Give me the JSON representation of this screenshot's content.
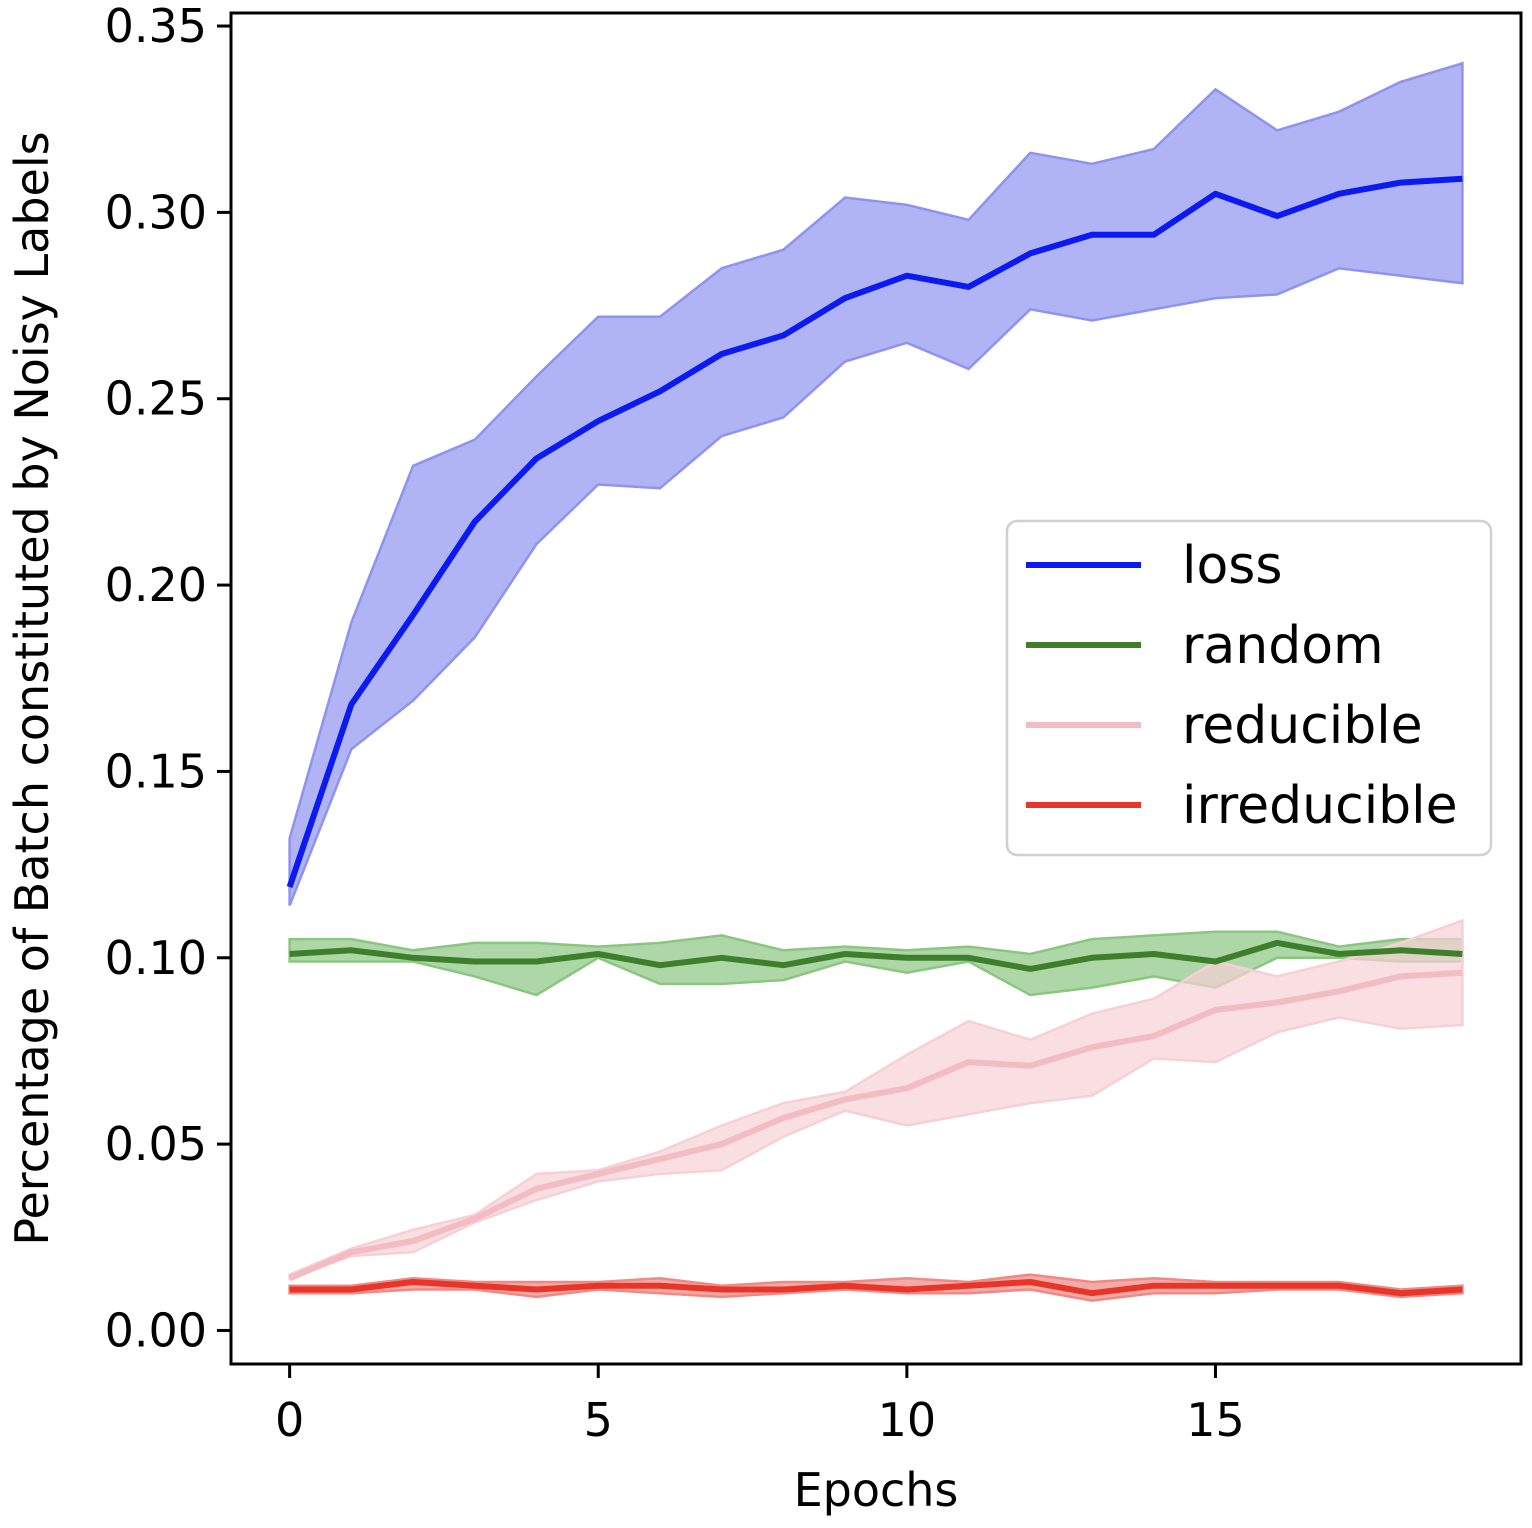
{
  "chart_data": {
    "type": "line",
    "title": "",
    "xlabel": "Epochs",
    "ylabel": "Percentage of Batch constituted by Noisy Labels",
    "xlim": [
      -0.95,
      19.95
    ],
    "ylim": [
      -0.009,
      0.3535
    ],
    "xticks": [
      0,
      5,
      10,
      15
    ],
    "xtick_labels": [
      "0",
      "5",
      "10",
      "15"
    ],
    "yticks": [
      0.0,
      0.05,
      0.1,
      0.15,
      0.2,
      0.25,
      0.3,
      0.35
    ],
    "ytick_labels": [
      "0.00",
      "0.05",
      "0.10",
      "0.15",
      "0.20",
      "0.25",
      "0.30",
      "0.35"
    ],
    "grid": false,
    "legend_position": "center-right",
    "x": [
      0,
      1,
      2,
      3,
      4,
      5,
      6,
      7,
      8,
      9,
      10,
      11,
      12,
      13,
      14,
      15,
      16,
      17,
      18,
      19
    ],
    "series": [
      {
        "name": "loss",
        "color": "#0b1af0",
        "fill_color": "#8e93ef",
        "values": [
          0.119,
          0.168,
          0.192,
          0.217,
          0.234,
          0.244,
          0.252,
          0.262,
          0.267,
          0.277,
          0.283,
          0.28,
          0.289,
          0.294,
          0.294,
          0.305,
          0.299,
          0.305,
          0.308,
          0.309
        ],
        "lower": [
          0.114,
          0.156,
          0.169,
          0.186,
          0.211,
          0.227,
          0.226,
          0.24,
          0.245,
          0.26,
          0.265,
          0.258,
          0.274,
          0.271,
          0.274,
          0.277,
          0.278,
          0.285,
          0.283,
          0.281
        ],
        "upper": [
          0.132,
          0.19,
          0.232,
          0.239,
          0.256,
          0.272,
          0.272,
          0.285,
          0.29,
          0.304,
          0.302,
          0.298,
          0.316,
          0.313,
          0.317,
          0.333,
          0.322,
          0.327,
          0.335,
          0.34
        ]
      },
      {
        "name": "random",
        "color": "#3d7f2a",
        "fill_color": "#8bc681",
        "values": [
          0.101,
          0.102,
          0.1,
          0.099,
          0.099,
          0.101,
          0.098,
          0.1,
          0.098,
          0.101,
          0.1,
          0.1,
          0.097,
          0.1,
          0.101,
          0.099,
          0.104,
          0.101,
          0.102,
          0.101
        ],
        "lower": [
          0.099,
          0.099,
          0.099,
          0.095,
          0.09,
          0.1,
          0.093,
          0.093,
          0.094,
          0.099,
          0.096,
          0.099,
          0.09,
          0.092,
          0.095,
          0.092,
          0.1,
          0.1,
          0.099,
          0.099
        ],
        "upper": [
          0.105,
          0.105,
          0.102,
          0.104,
          0.104,
          0.103,
          0.104,
          0.106,
          0.102,
          0.103,
          0.102,
          0.103,
          0.101,
          0.105,
          0.106,
          0.107,
          0.107,
          0.103,
          0.105,
          0.105
        ]
      },
      {
        "name": "reducible",
        "color": "#f2bcc2",
        "fill_color": "#f7d0d5",
        "values": [
          0.014,
          0.021,
          0.024,
          0.03,
          0.038,
          0.042,
          0.046,
          0.05,
          0.057,
          0.062,
          0.065,
          0.072,
          0.071,
          0.076,
          0.079,
          0.086,
          0.088,
          0.091,
          0.095,
          0.096
        ],
        "lower": [
          0.014,
          0.02,
          0.021,
          0.029,
          0.035,
          0.04,
          0.042,
          0.043,
          0.052,
          0.059,
          0.055,
          0.058,
          0.061,
          0.063,
          0.073,
          0.072,
          0.08,
          0.084,
          0.081,
          0.082
        ],
        "upper": [
          0.015,
          0.022,
          0.027,
          0.031,
          0.042,
          0.043,
          0.048,
          0.055,
          0.061,
          0.064,
          0.074,
          0.083,
          0.078,
          0.085,
          0.089,
          0.099,
          0.095,
          0.099,
          0.104,
          0.11
        ]
      },
      {
        "name": "irreducible",
        "color": "#e8352a",
        "fill_color": "#f08883",
        "values": [
          0.011,
          0.011,
          0.013,
          0.012,
          0.011,
          0.012,
          0.012,
          0.011,
          0.011,
          0.012,
          0.011,
          0.012,
          0.013,
          0.01,
          0.012,
          0.012,
          0.012,
          0.012,
          0.01,
          0.011
        ],
        "lower": [
          0.01,
          0.01,
          0.011,
          0.011,
          0.009,
          0.011,
          0.01,
          0.009,
          0.01,
          0.011,
          0.01,
          0.01,
          0.011,
          0.008,
          0.01,
          0.01,
          0.011,
          0.011,
          0.009,
          0.01
        ],
        "upper": [
          0.012,
          0.012,
          0.014,
          0.013,
          0.013,
          0.013,
          0.014,
          0.012,
          0.013,
          0.013,
          0.014,
          0.013,
          0.015,
          0.013,
          0.014,
          0.013,
          0.013,
          0.013,
          0.011,
          0.012
        ]
      }
    ]
  }
}
